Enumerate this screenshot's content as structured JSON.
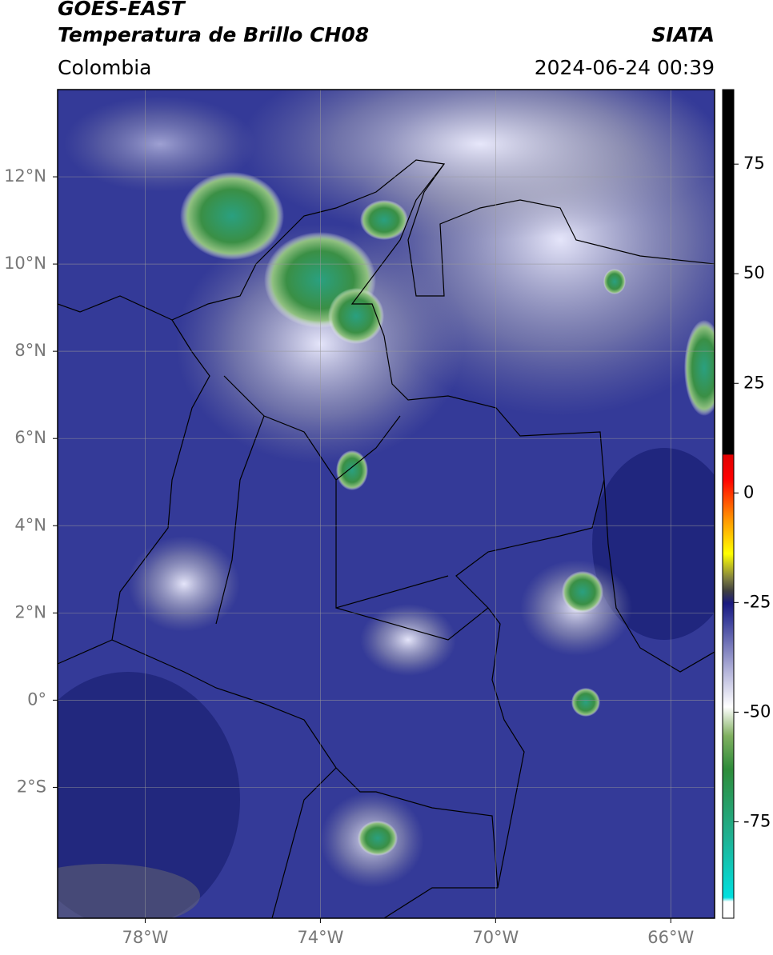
{
  "header": {
    "title": "GOES-EAST",
    "subtitle": "Temperatura de Brillo CH08",
    "region": "Colombia",
    "source": "SIATA",
    "timestamp": "2024-06-24 00:39"
  },
  "map": {
    "xlim": [
      -80,
      -65
    ],
    "ylim": [
      -5,
      14
    ],
    "xticks": [
      {
        "value": -78,
        "label": "78°W"
      },
      {
        "value": -74,
        "label": "74°W"
      },
      {
        "value": -70,
        "label": "70°W"
      },
      {
        "value": -66,
        "label": "66°W"
      }
    ],
    "yticks": [
      {
        "value": 12,
        "label": "12°N"
      },
      {
        "value": 10,
        "label": "10°N"
      },
      {
        "value": 8,
        "label": "8°N"
      },
      {
        "value": 6,
        "label": "6°N"
      },
      {
        "value": 4,
        "label": "4°N"
      },
      {
        "value": 2,
        "label": "2°N"
      },
      {
        "value": 0,
        "label": "0°"
      },
      {
        "value": -2,
        "label": "2°S"
      }
    ],
    "grid": true
  },
  "colorbar": {
    "lim": [
      -97,
      92
    ],
    "ticks": [
      75,
      50,
      25,
      0,
      -25,
      -50,
      -75
    ]
  }
}
